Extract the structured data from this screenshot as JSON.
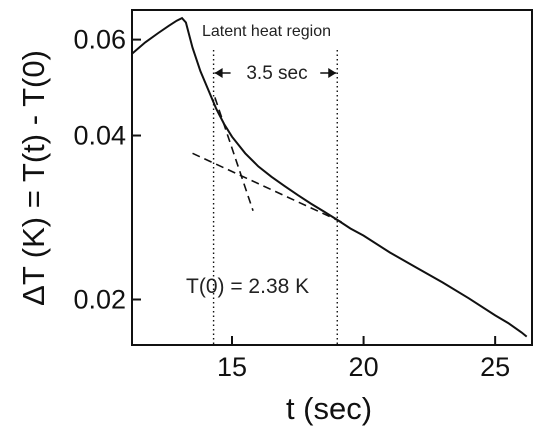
{
  "chart_data": {
    "type": "line",
    "title": "",
    "xlabel": "t (sec)",
    "ylabel": "ΔT (K) = T(t) - T(0)",
    "xlim": [
      11.2,
      26.4
    ],
    "ylim": [
      0.0165,
      0.068
    ],
    "yscale": "log",
    "grid": false,
    "legend": "none",
    "x_ticks": [
      15,
      20,
      25
    ],
    "x_tick_labels": [
      "15",
      "20",
      "25"
    ],
    "y_ticks": [
      0.02,
      0.04,
      0.06
    ],
    "y_tick_labels": [
      "0.02",
      "0.04",
      "0.06"
    ],
    "series": [
      {
        "x": [
          11.2,
          11.7,
          12.2,
          12.6,
          12.9,
          13.1,
          13.25,
          13.5,
          13.8,
          14.1,
          14.4,
          14.7,
          15.0,
          15.5,
          16.0,
          16.5,
          17.0,
          17.5,
          18.0,
          18.5,
          19.0,
          19.5,
          20.0,
          21.0,
          22.0,
          23.0,
          24.0,
          25.0,
          25.5,
          26.0,
          26.2
        ],
        "y": [
          0.0565,
          0.0593,
          0.0617,
          0.0636,
          0.065,
          0.0657,
          0.0645,
          0.058,
          0.0525,
          0.0485,
          0.0448,
          0.042,
          0.0398,
          0.0371,
          0.0351,
          0.0336,
          0.0323,
          0.0311,
          0.03,
          0.029,
          0.028,
          0.027,
          0.0262,
          0.0244,
          0.0229,
          0.0215,
          0.0201,
          0.0187,
          0.0181,
          0.0174,
          0.0171
        ]
      }
    ],
    "fit_lines": [
      {
        "x": [
          14.35,
          15.8
        ],
        "y": [
          0.047,
          0.0291
        ]
      },
      {
        "x": [
          13.5,
          19.2
        ],
        "y": [
          0.0371,
          0.0277
        ]
      }
    ],
    "vlines": [
      14.3,
      19.0
    ],
    "annotations": {
      "region": "Latent heat region",
      "interval": "3.5 sec",
      "t0": "T(0) = 2.38 K"
    }
  }
}
